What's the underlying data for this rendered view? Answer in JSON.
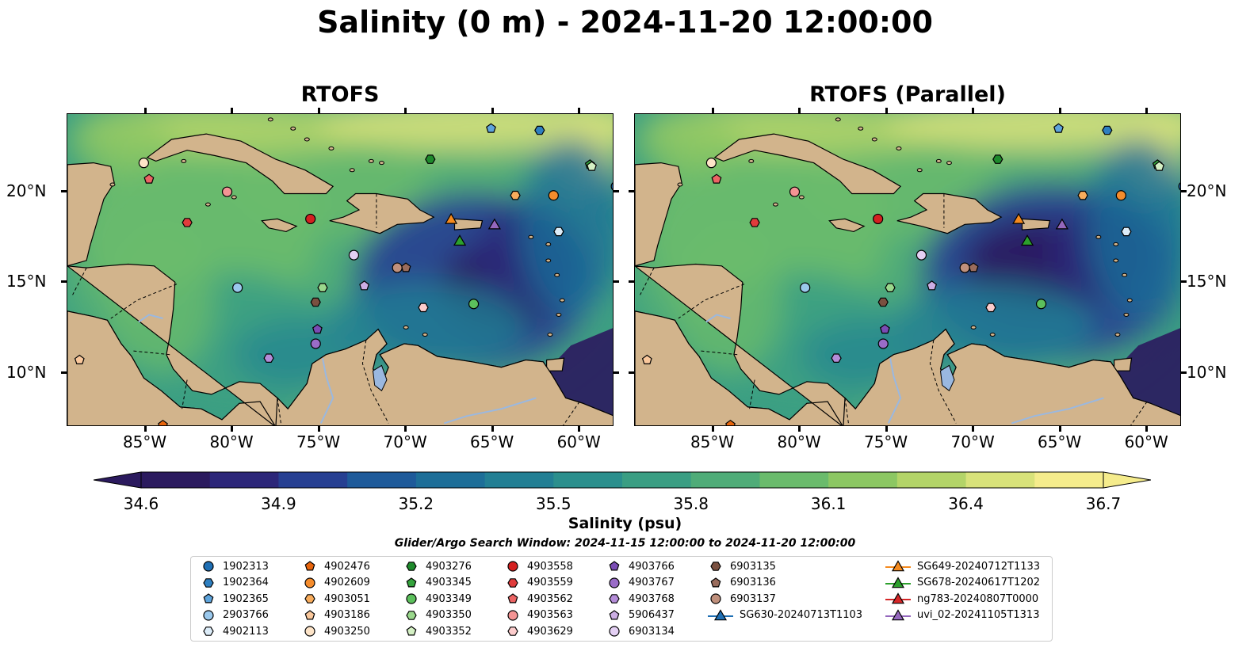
{
  "title": "Salinity (0 m) - 2024-11-20 12:00:00",
  "panels": [
    {
      "title": "RTOFS"
    },
    {
      "title": "RTOFS (Parallel)"
    }
  ],
  "axes": {
    "x_ticks": [
      "85°W",
      "80°W",
      "75°W",
      "70°W",
      "65°W",
      "60°W"
    ],
    "y_ticks": [
      "20°N",
      "15°N",
      "10°N"
    ]
  },
  "colorbar": {
    "label": "Salinity (psu)",
    "ticks": [
      "34.6",
      "34.9",
      "35.2",
      "35.5",
      "35.8",
      "36.1",
      "36.4",
      "36.7"
    ],
    "colors": [
      "#2b1a5e",
      "#2c2679",
      "#263f92",
      "#1e5a9a",
      "#1d6e98",
      "#227f94",
      "#2b8f8d",
      "#3a9e83",
      "#4fac78",
      "#6abb6c",
      "#8cc763",
      "#b3d468",
      "#d8e27a",
      "#f5ec8c"
    ]
  },
  "window_note": "Glider/Argo Search Window: 2024-11-15 12:00:00 to 2024-11-20 12:00:00",
  "legend": {
    "columns": [
      [
        {
          "label": "1902313",
          "marker": "circle",
          "color": "#1f6fb4"
        },
        {
          "label": "1902364",
          "marker": "hexagon",
          "color": "#2e7fc0"
        },
        {
          "label": "1902365",
          "marker": "pentagon",
          "color": "#5ea4dc"
        },
        {
          "label": "2903766",
          "marker": "circle",
          "color": "#9ac8ec"
        },
        {
          "label": "4902113",
          "marker": "hexagon",
          "color": "#dcecf8"
        }
      ],
      [
        {
          "label": "4902476",
          "marker": "pentagon",
          "color": "#e8650c"
        },
        {
          "label": "4902609",
          "marker": "circle",
          "color": "#f58c2c"
        },
        {
          "label": "4903051",
          "marker": "hexagon",
          "color": "#f8ac5c"
        },
        {
          "label": "4903186",
          "marker": "pentagon",
          "color": "#fac89c"
        },
        {
          "label": "4903250",
          "marker": "circle",
          "color": "#fde4c8"
        }
      ],
      [
        {
          "label": "4903276",
          "marker": "hexagon",
          "color": "#1e8a2c"
        },
        {
          "label": "4903345",
          "marker": "pentagon",
          "color": "#34a33c"
        },
        {
          "label": "4903349",
          "marker": "circle",
          "color": "#5cc05c"
        },
        {
          "label": "4903350",
          "marker": "hexagon",
          "color": "#9ad88c"
        },
        {
          "label": "4903352",
          "marker": "pentagon",
          "color": "#d4f0c4"
        }
      ],
      [
        {
          "label": "4903558",
          "marker": "circle",
          "color": "#d42020"
        },
        {
          "label": "4903559",
          "marker": "hexagon",
          "color": "#e03c3c"
        },
        {
          "label": "4903562",
          "marker": "pentagon",
          "color": "#ec6464"
        },
        {
          "label": "4903563",
          "marker": "circle",
          "color": "#f49494"
        },
        {
          "label": "4903629",
          "marker": "hexagon",
          "color": "#fccccc"
        }
      ],
      [
        {
          "label": "4903766",
          "marker": "pentagon",
          "color": "#7a4cb4"
        },
        {
          "label": "4903767",
          "marker": "circle",
          "color": "#9a6cc8"
        },
        {
          "label": "4903768",
          "marker": "hexagon",
          "color": "#b48cd8"
        },
        {
          "label": "5906437",
          "marker": "pentagon",
          "color": "#ccaee4"
        },
        {
          "label": "6903134",
          "marker": "circle",
          "color": "#e4d0f4"
        }
      ],
      [
        {
          "label": "6903135",
          "marker": "hexagon",
          "color": "#7a5040"
        },
        {
          "label": "6903136",
          "marker": "pentagon",
          "color": "#9a6c5c"
        },
        {
          "label": "6903137",
          "marker": "circle",
          "color": "#c0907c"
        },
        {
          "label": "SG630-20240713T1103",
          "marker": "triangle",
          "color": "#1f6fb4"
        }
      ],
      [
        {
          "label": "SG649-20240712T1133",
          "marker": "triangle",
          "color": "#f58a1e"
        },
        {
          "label": "SG678-20240617T1202",
          "marker": "triangle",
          "color": "#2ca02c"
        },
        {
          "label": "ng783-20240807T0000",
          "marker": "triangle",
          "color": "#d62728"
        },
        {
          "label": "uvi_02-20241105T1313",
          "marker": "triangle",
          "color": "#9467bd"
        }
      ]
    ]
  },
  "map_colors": {
    "land": "#d2b48c",
    "lake": "#9ab8e0"
  },
  "markers": [
    {
      "id": "1902313",
      "lon": -57.9,
      "lat": 20.3
    },
    {
      "id": "1902364",
      "lon": -62.3,
      "lat": 23.4
    },
    {
      "id": "1902365",
      "lon": -65.1,
      "lat": 23.5
    },
    {
      "id": "2903766",
      "lon": -79.7,
      "lat": 14.7
    },
    {
      "id": "4902113",
      "lon": -61.2,
      "lat": 17.8
    },
    {
      "id": "4902476",
      "lon": -84.0,
      "lat": 7.1
    },
    {
      "id": "4902609",
      "lon": -61.5,
      "lat": 19.8
    },
    {
      "id": "4903051",
      "lon": -63.7,
      "lat": 19.8
    },
    {
      "id": "4903186",
      "lon": -88.8,
      "lat": 10.7
    },
    {
      "id": "4903250",
      "lon": -85.1,
      "lat": 21.6
    },
    {
      "id": "4903276",
      "lon": -68.6,
      "lat": 21.8
    },
    {
      "id": "4903345",
      "lon": -59.4,
      "lat": 21.5
    },
    {
      "id": "4903349",
      "lon": -66.1,
      "lat": 13.8
    },
    {
      "id": "4903350",
      "lon": -74.8,
      "lat": 14.7
    },
    {
      "id": "4903352",
      "lon": -59.3,
      "lat": 21.4
    },
    {
      "id": "4903558",
      "lon": -75.5,
      "lat": 18.5
    },
    {
      "id": "4903559",
      "lon": -82.6,
      "lat": 18.3
    },
    {
      "id": "4903562",
      "lon": -84.8,
      "lat": 20.7
    },
    {
      "id": "4903563",
      "lon": -80.3,
      "lat": 20.0
    },
    {
      "id": "4903629",
      "lon": -69.0,
      "lat": 13.6
    },
    {
      "id": "4903766",
      "lon": -75.1,
      "lat": 12.4
    },
    {
      "id": "4903767",
      "lon": -75.2,
      "lat": 11.6
    },
    {
      "id": "4903768",
      "lon": -77.9,
      "lat": 10.8
    },
    {
      "id": "5906437",
      "lon": -72.4,
      "lat": 14.8
    },
    {
      "id": "6903134",
      "lon": -73.0,
      "lat": 16.5
    },
    {
      "id": "6903135",
      "lon": -75.2,
      "lat": 13.9
    },
    {
      "id": "6903136",
      "lon": -70.0,
      "lat": 15.8
    },
    {
      "id": "6903137",
      "lon": -70.5,
      "lat": 15.8
    },
    {
      "id": "SG649-20240712T1133",
      "lon": -67.4,
      "lat": 18.5
    },
    {
      "id": "SG678-20240617T1202",
      "lon": -66.9,
      "lat": 17.3
    },
    {
      "id": "uvi_02-20241105T1313",
      "lon": -64.9,
      "lat": 18.2
    }
  ]
}
